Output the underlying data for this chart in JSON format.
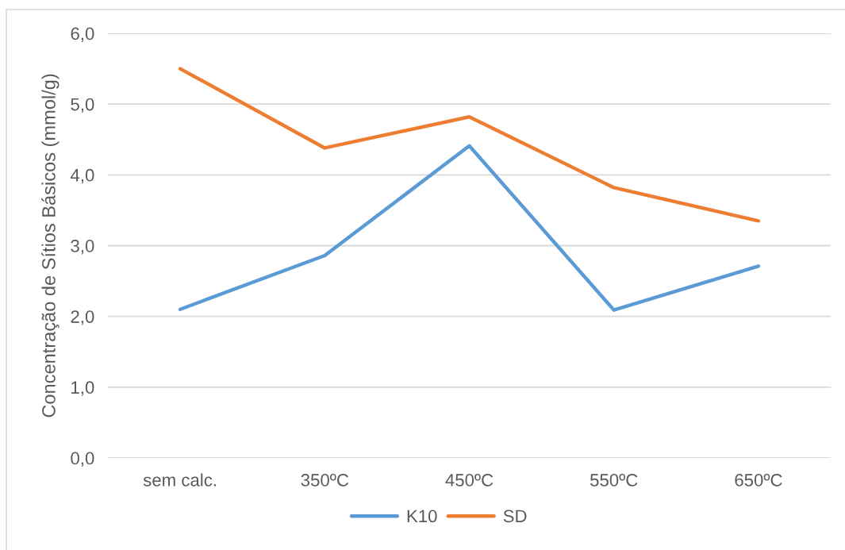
{
  "chart_data": {
    "type": "line",
    "ylabel": "Concentração de Sítios Básicos (mmol/g)",
    "categories": [
      "sem calc.",
      "350ºC",
      "450ºC",
      "550ºC",
      "650ºC"
    ],
    "series": [
      {
        "name": "K10",
        "color": "#5b9bd5",
        "values": [
          2.1,
          2.86,
          4.41,
          2.09,
          2.71
        ]
      },
      {
        "name": "SD",
        "color": "#ed7d31",
        "values": [
          5.5,
          4.38,
          4.82,
          3.82,
          3.35
        ]
      }
    ],
    "ylim": [
      0,
      6
    ],
    "yticks": [
      {
        "value": 0,
        "label": "0,0"
      },
      {
        "value": 1,
        "label": "1,0"
      },
      {
        "value": 2,
        "label": "2,0"
      },
      {
        "value": 3,
        "label": "3,0"
      },
      {
        "value": 4,
        "label": "4,0"
      },
      {
        "value": 5,
        "label": "5,0"
      },
      {
        "value": 6,
        "label": "6,0"
      }
    ],
    "grid": "y",
    "legend": "bottom",
    "marker": "none",
    "line_style": "solid"
  }
}
